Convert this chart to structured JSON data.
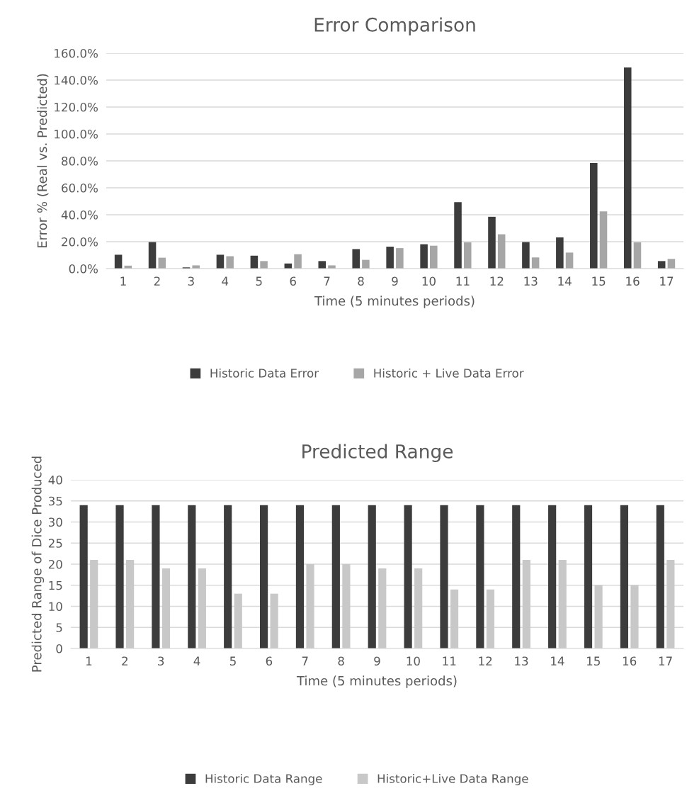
{
  "chart_data": [
    {
      "type": "bar",
      "title": "Error Comparison",
      "xlabel": "Time (5 minutes periods)",
      "ylabel": "Error % (Real vs. Predicted)",
      "categories": [
        "1",
        "2",
        "3",
        "4",
        "5",
        "6",
        "7",
        "8",
        "9",
        "10",
        "11",
        "12",
        "13",
        "14",
        "15",
        "16",
        "17"
      ],
      "series": [
        {
          "name": "Historic Data Error",
          "color": "#3c3c3c",
          "values": [
            10.3,
            19.7,
            0.9,
            10.3,
            9.6,
            3.8,
            5.6,
            14.5,
            16.3,
            18.1,
            49.4,
            38.5,
            19.7,
            23.2,
            78.4,
            149.3,
            5.6
          ]
        },
        {
          "name": "Historic + Live Data Error",
          "color": "#a6a6a6",
          "values": [
            2.2,
            8.1,
            2.4,
            9.2,
            5.6,
            10.7,
            2.4,
            6.5,
            15.2,
            17.0,
            19.5,
            25.5,
            8.3,
            11.9,
            42.5,
            19.5,
            7.2
          ]
        }
      ],
      "ylim": [
        0,
        160
      ],
      "yticks": [
        {
          "value": 0,
          "label": "0.0%"
        },
        {
          "value": 20,
          "label": "20.0%"
        },
        {
          "value": 40,
          "label": "40.0%"
        },
        {
          "value": 60,
          "label": "60.0%"
        },
        {
          "value": 80,
          "label": "80.0%"
        },
        {
          "value": 100,
          "label": "100.0%"
        },
        {
          "value": 120,
          "label": "120.0%"
        },
        {
          "value": 140,
          "label": "140.0%"
        },
        {
          "value": 160,
          "label": "160.0%"
        }
      ],
      "grid": "y",
      "legend": "bottom"
    },
    {
      "type": "bar",
      "title": "Predicted Range",
      "xlabel": "Time (5 minutes periods)",
      "ylabel": "Predicted Range of Dice Produced",
      "categories": [
        "1",
        "2",
        "3",
        "4",
        "5",
        "6",
        "7",
        "8",
        "9",
        "10",
        "11",
        "12",
        "13",
        "14",
        "15",
        "16",
        "17"
      ],
      "series": [
        {
          "name": "Historic Data Range",
          "color": "#3c3c3c",
          "values": [
            34,
            34,
            34,
            34,
            34,
            34,
            34,
            34,
            34,
            34,
            34,
            34,
            34,
            34,
            34,
            34,
            34
          ]
        },
        {
          "name": "Historic+Live Data Range",
          "color": "#c8c8c8",
          "values": [
            21,
            21,
            19,
            19,
            13,
            13,
            20,
            20,
            19,
            19,
            14,
            14,
            21,
            21,
            15,
            15,
            21
          ]
        }
      ],
      "ylim": [
        0,
        40
      ],
      "yticks": [
        0,
        5,
        10,
        15,
        20,
        25,
        30,
        35,
        40
      ],
      "grid": "y",
      "legend": "bottom"
    }
  ]
}
